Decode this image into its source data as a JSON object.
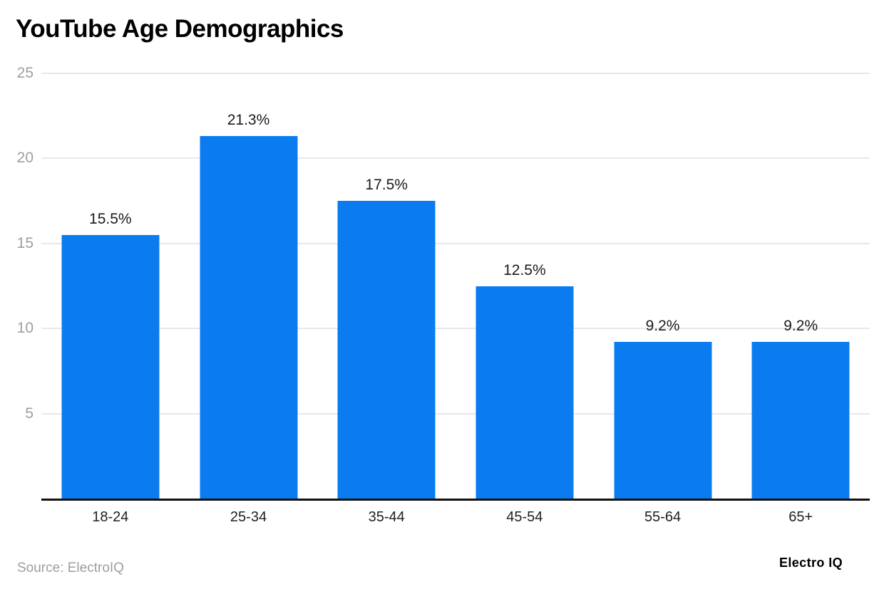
{
  "header": {
    "title": "YouTube Age Demographics"
  },
  "chart_data": {
    "type": "bar",
    "title": "YouTube Age Demographics",
    "categories": [
      "18-24",
      "25-34",
      "35-44",
      "45-54",
      "55-64",
      "65+"
    ],
    "values": [
      15.5,
      21.3,
      17.5,
      12.5,
      9.2,
      9.2
    ],
    "value_labels": [
      "15.5%",
      "21.3%",
      "17.5%",
      "12.5%",
      "9.2%",
      "9.2%"
    ],
    "xlabel": "",
    "ylabel": "",
    "ylim": [
      0,
      25
    ],
    "yticks": [
      5,
      10,
      15,
      20,
      25
    ],
    "grid": true,
    "legend": false,
    "bar_color": "#0b7cf0",
    "gridline_color": "#e8e8e8",
    "axis_line_color": "#111111",
    "tick_label_color": "#9e9e9e"
  },
  "footer": {
    "source": "Source: ElectroIQ",
    "brand": "Electro IQ"
  }
}
